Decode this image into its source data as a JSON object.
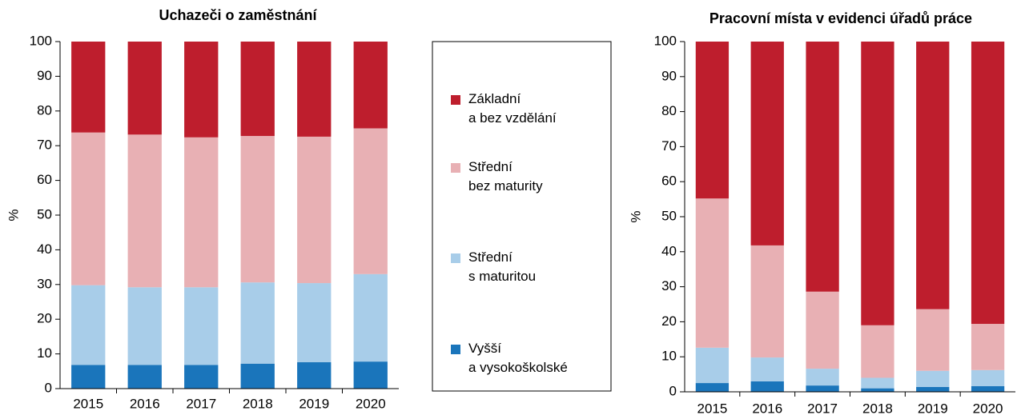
{
  "chart_data": [
    {
      "type": "stacked-bar",
      "title": "Uchazeči o zaměstnání",
      "y_label": "%",
      "categories": [
        "2015",
        "2016",
        "2017",
        "2018",
        "2019",
        "2020"
      ],
      "ylim": [
        0,
        100
      ],
      "yticks": [
        0,
        10,
        20,
        30,
        40,
        50,
        60,
        70,
        80,
        90,
        100
      ],
      "series": [
        {
          "name": "Vyšší a vysokoškolské",
          "color": "#1a75bb",
          "values": [
            6.8,
            6.8,
            6.8,
            7.2,
            7.6,
            7.8
          ]
        },
        {
          "name": "Střední s maturitou",
          "color": "#a8cde9",
          "values": [
            23.0,
            22.4,
            22.4,
            23.4,
            22.8,
            25.2
          ]
        },
        {
          "name": "Střední bez maturity",
          "color": "#e8b0b4",
          "values": [
            44.0,
            44.0,
            43.2,
            42.2,
            42.2,
            42.0
          ]
        },
        {
          "name": "Základní a bez vzdělání",
          "color": "#be1e2d",
          "values": [
            26.2,
            26.8,
            27.6,
            27.2,
            27.4,
            25.0
          ]
        }
      ]
    },
    {
      "type": "stacked-bar",
      "title": "Pracovní místa v evidenci úřadů práce",
      "y_label": "%",
      "categories": [
        "2015",
        "2016",
        "2017",
        "2018",
        "2019",
        "2020"
      ],
      "ylim": [
        0,
        100
      ],
      "yticks": [
        0,
        10,
        20,
        30,
        40,
        50,
        60,
        70,
        80,
        90,
        100
      ],
      "series": [
        {
          "color": "#1a75bb",
          "values": [
            2.5,
            3.0,
            1.8,
            1.0,
            1.4,
            1.6
          ]
        },
        {
          "color": "#a8cde9",
          "values": [
            10.1,
            6.8,
            4.8,
            3.0,
            4.6,
            4.6
          ]
        },
        {
          "color": "#e8b0b4",
          "values": [
            42.6,
            32.0,
            22.0,
            15.0,
            17.6,
            13.2
          ]
        },
        {
          "color": "#be1e2d",
          "values": [
            44.8,
            58.2,
            71.4,
            81.0,
            76.4,
            80.6
          ]
        }
      ]
    }
  ]
}
